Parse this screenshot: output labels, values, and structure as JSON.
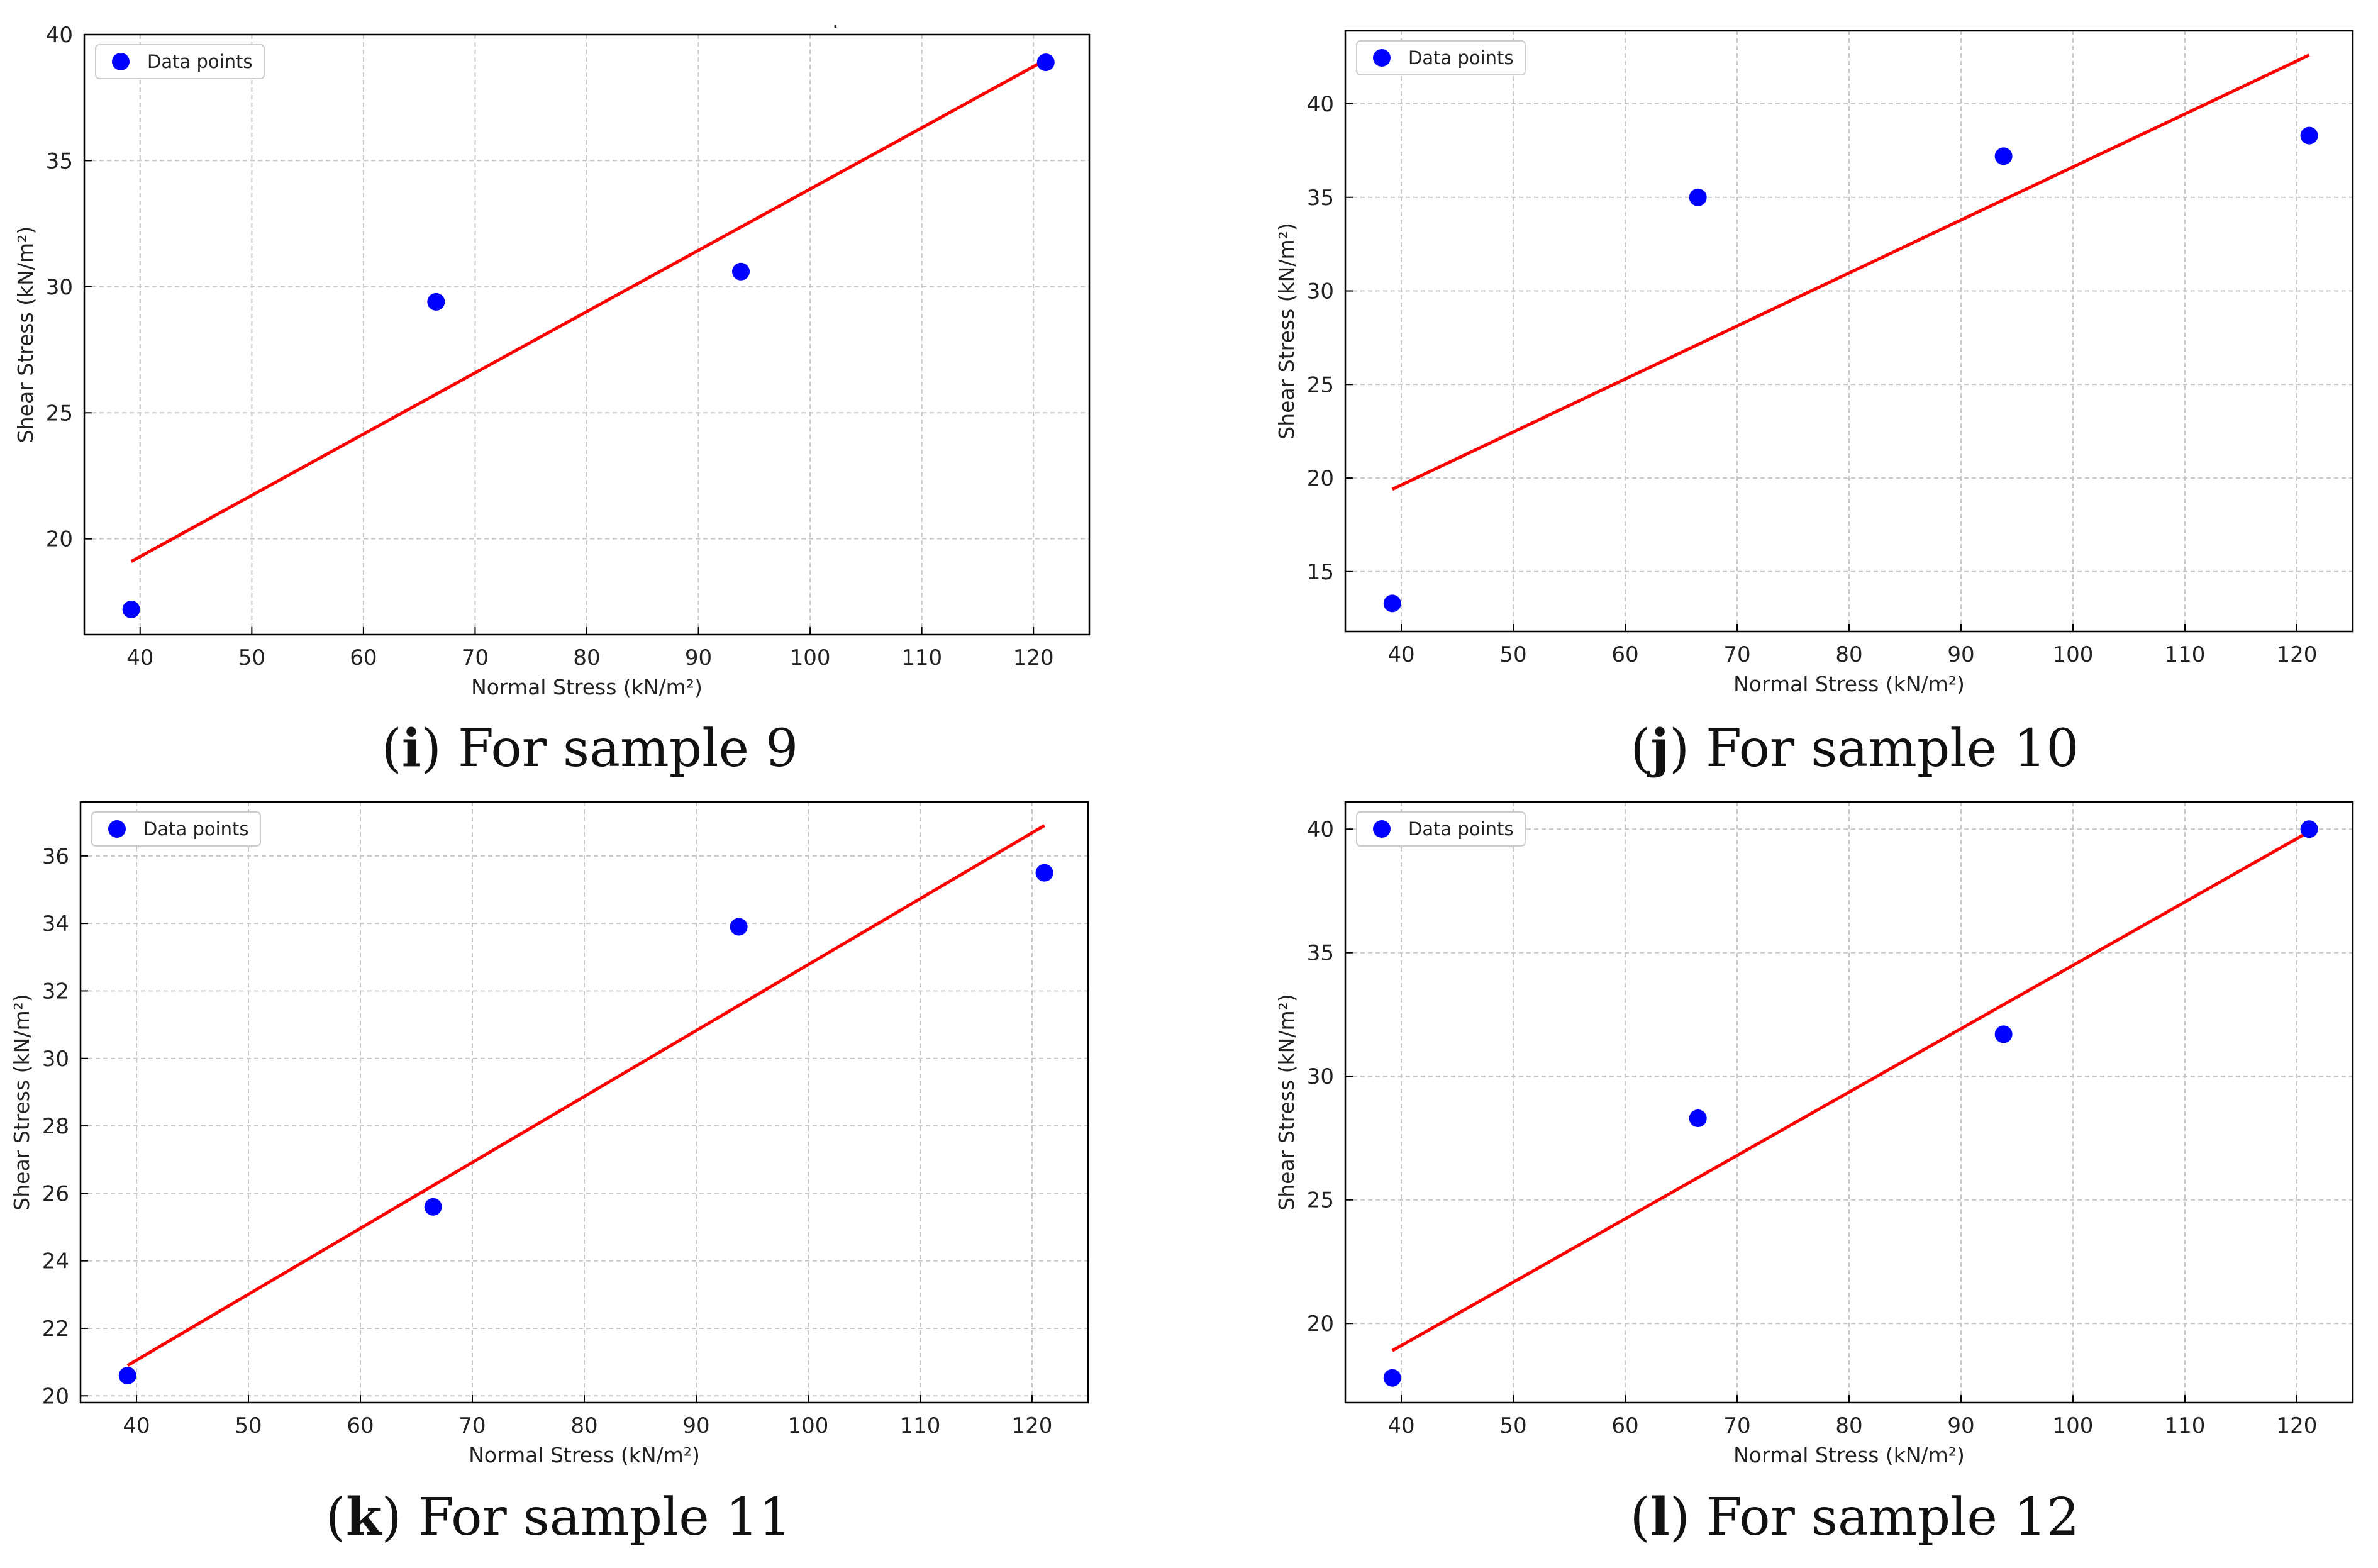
{
  "figure": {
    "stray_mark": "."
  },
  "chart_data": [
    {
      "type": "scatter",
      "panel_letter": "i",
      "caption_text": "For sample 9",
      "xlabel": "Normal Stress (kN/m²)",
      "ylabel": "Shear Stress (kN/m²)",
      "xlim": [
        35,
        125
      ],
      "ylim": [
        16.2,
        40
      ],
      "xticks": [
        40,
        50,
        60,
        70,
        80,
        90,
        100,
        110,
        120
      ],
      "yticks": [
        20,
        25,
        30,
        35,
        40
      ],
      "grid": true,
      "legend": {
        "label": "Data points",
        "location": "top-left"
      },
      "points": {
        "name": "Data points",
        "color": "#0000ff",
        "x": [
          39.2,
          66.5,
          93.8,
          121.1
        ],
        "y": [
          17.2,
          29.4,
          30.6,
          38.9
        ]
      },
      "fit_line": {
        "color": "#ff0000",
        "x": [
          39.2,
          121.1
        ],
        "y": [
          19.1,
          39.0
        ]
      }
    },
    {
      "type": "scatter",
      "panel_letter": "j",
      "caption_text": "For sample 10",
      "xlabel": "Normal Stress (kN/m²)",
      "ylabel": "Shear Stress (kN/m²)",
      "xlim": [
        35,
        125
      ],
      "ylim": [
        11.8,
        43.9
      ],
      "xticks": [
        40,
        50,
        60,
        70,
        80,
        90,
        100,
        110,
        120
      ],
      "yticks": [
        15,
        20,
        25,
        30,
        35,
        40
      ],
      "grid": true,
      "legend": {
        "label": "Data points",
        "location": "top-left"
      },
      "points": {
        "name": "Data points",
        "color": "#0000ff",
        "x": [
          39.2,
          66.5,
          93.8,
          121.1
        ],
        "y": [
          13.3,
          35.0,
          37.2,
          38.3
        ]
      },
      "fit_line": {
        "color": "#ff0000",
        "x": [
          39.2,
          121.1
        ],
        "y": [
          19.4,
          42.6
        ]
      }
    },
    {
      "type": "scatter",
      "panel_letter": "k",
      "caption_text": "For sample 11",
      "xlabel": "Normal Stress (kN/m²)",
      "ylabel": "Shear Stress (kN/m²)",
      "xlim": [
        35,
        125
      ],
      "ylim": [
        19.8,
        37.6
      ],
      "xticks": [
        40,
        50,
        60,
        70,
        80,
        90,
        100,
        110,
        120
      ],
      "yticks": [
        20,
        22,
        24,
        26,
        28,
        30,
        32,
        34,
        36
      ],
      "grid": true,
      "legend": {
        "label": "Data points",
        "location": "top-left"
      },
      "points": {
        "name": "Data points",
        "color": "#0000ff",
        "x": [
          39.2,
          66.5,
          93.8,
          121.1
        ],
        "y": [
          20.6,
          25.6,
          33.9,
          35.5
        ]
      },
      "fit_line": {
        "color": "#ff0000",
        "x": [
          39.2,
          121.1
        ],
        "y": [
          20.9,
          36.9
        ]
      }
    },
    {
      "type": "scatter",
      "panel_letter": "l",
      "caption_text": "For sample 12",
      "xlabel": "Normal Stress (kN/m²)",
      "ylabel": "Shear Stress (kN/m²)",
      "xlim": [
        35,
        125
      ],
      "ylim": [
        16.8,
        41.1
      ],
      "xticks": [
        40,
        50,
        60,
        70,
        80,
        90,
        100,
        110,
        120
      ],
      "yticks": [
        20,
        25,
        30,
        35,
        40
      ],
      "grid": true,
      "legend": {
        "label": "Data points",
        "location": "top-left"
      },
      "points": {
        "name": "Data points",
        "color": "#0000ff",
        "x": [
          39.2,
          66.5,
          93.8,
          121.1
        ],
        "y": [
          17.8,
          28.3,
          31.7,
          40.0
        ]
      },
      "fit_line": {
        "color": "#ff0000",
        "x": [
          39.2,
          121.1
        ],
        "y": [
          18.9,
          39.9
        ]
      }
    }
  ]
}
